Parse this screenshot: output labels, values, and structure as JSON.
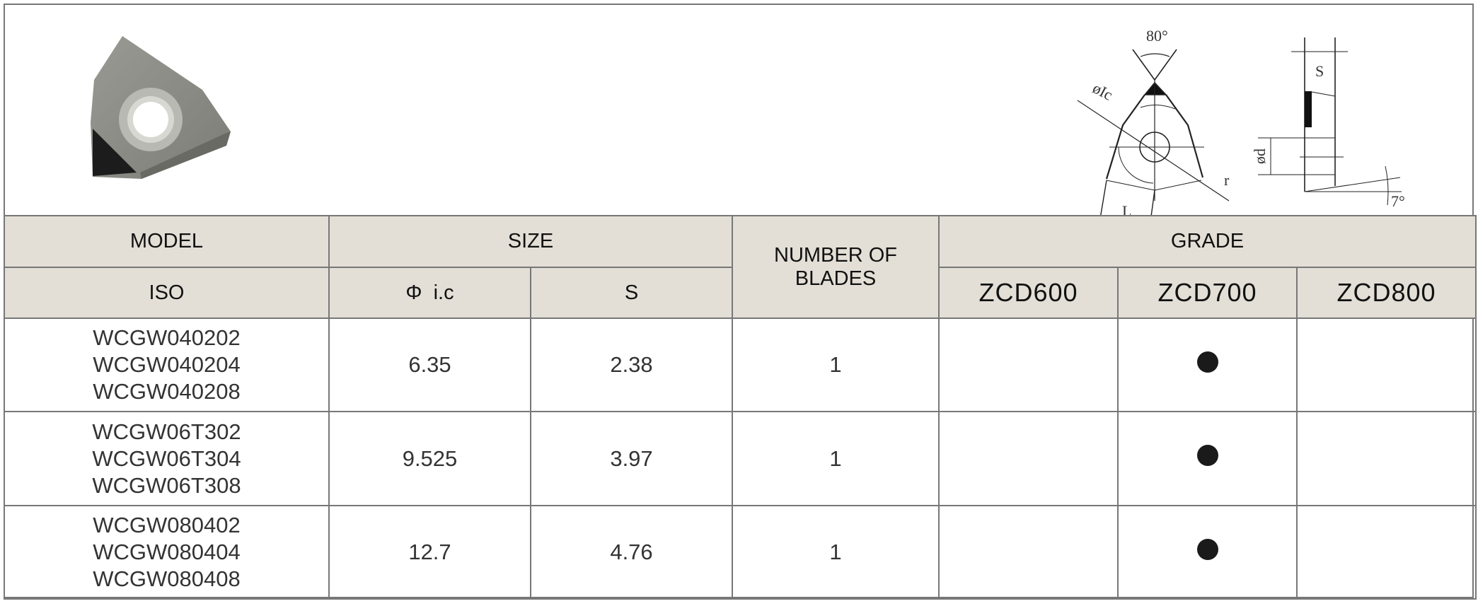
{
  "diagram": {
    "angle": "80°",
    "ic": "øIc",
    "radius": "r",
    "length": "L",
    "thickness": "S",
    "hole": "ød",
    "clearance": "7°"
  },
  "header": {
    "model": "MODEL",
    "size": "SIZE",
    "blades": "NUMBER OF BLADES",
    "grade": "GRADE",
    "iso": "ISO",
    "ic": "Φ  i.c",
    "s": "S",
    "grades": [
      "ZCD600",
      "ZCD700",
      "ZCD800"
    ]
  },
  "rows": [
    {
      "models": [
        "WCGW040202",
        "WCGW040204",
        "WCGW040208"
      ],
      "ic": "6.35",
      "s": "2.38",
      "blades": "1",
      "grades": [
        false,
        true,
        false
      ]
    },
    {
      "models": [
        "WCGW06T302",
        "WCGW06T304",
        "WCGW06T308"
      ],
      "ic": "9.525",
      "s": "3.97",
      "blades": "1",
      "grades": [
        false,
        true,
        false
      ]
    },
    {
      "models": [
        "WCGW080402",
        "WCGW080404",
        "WCGW080408"
      ],
      "ic": "12.7",
      "s": "4.76",
      "blades": "1",
      "grades": [
        false,
        true,
        false
      ]
    }
  ],
  "colors": {
    "header_bg": "#e3dfd6",
    "border": "#777777",
    "insert_body": "#8a8a84",
    "pcd_tip": "#1c1c1c"
  }
}
